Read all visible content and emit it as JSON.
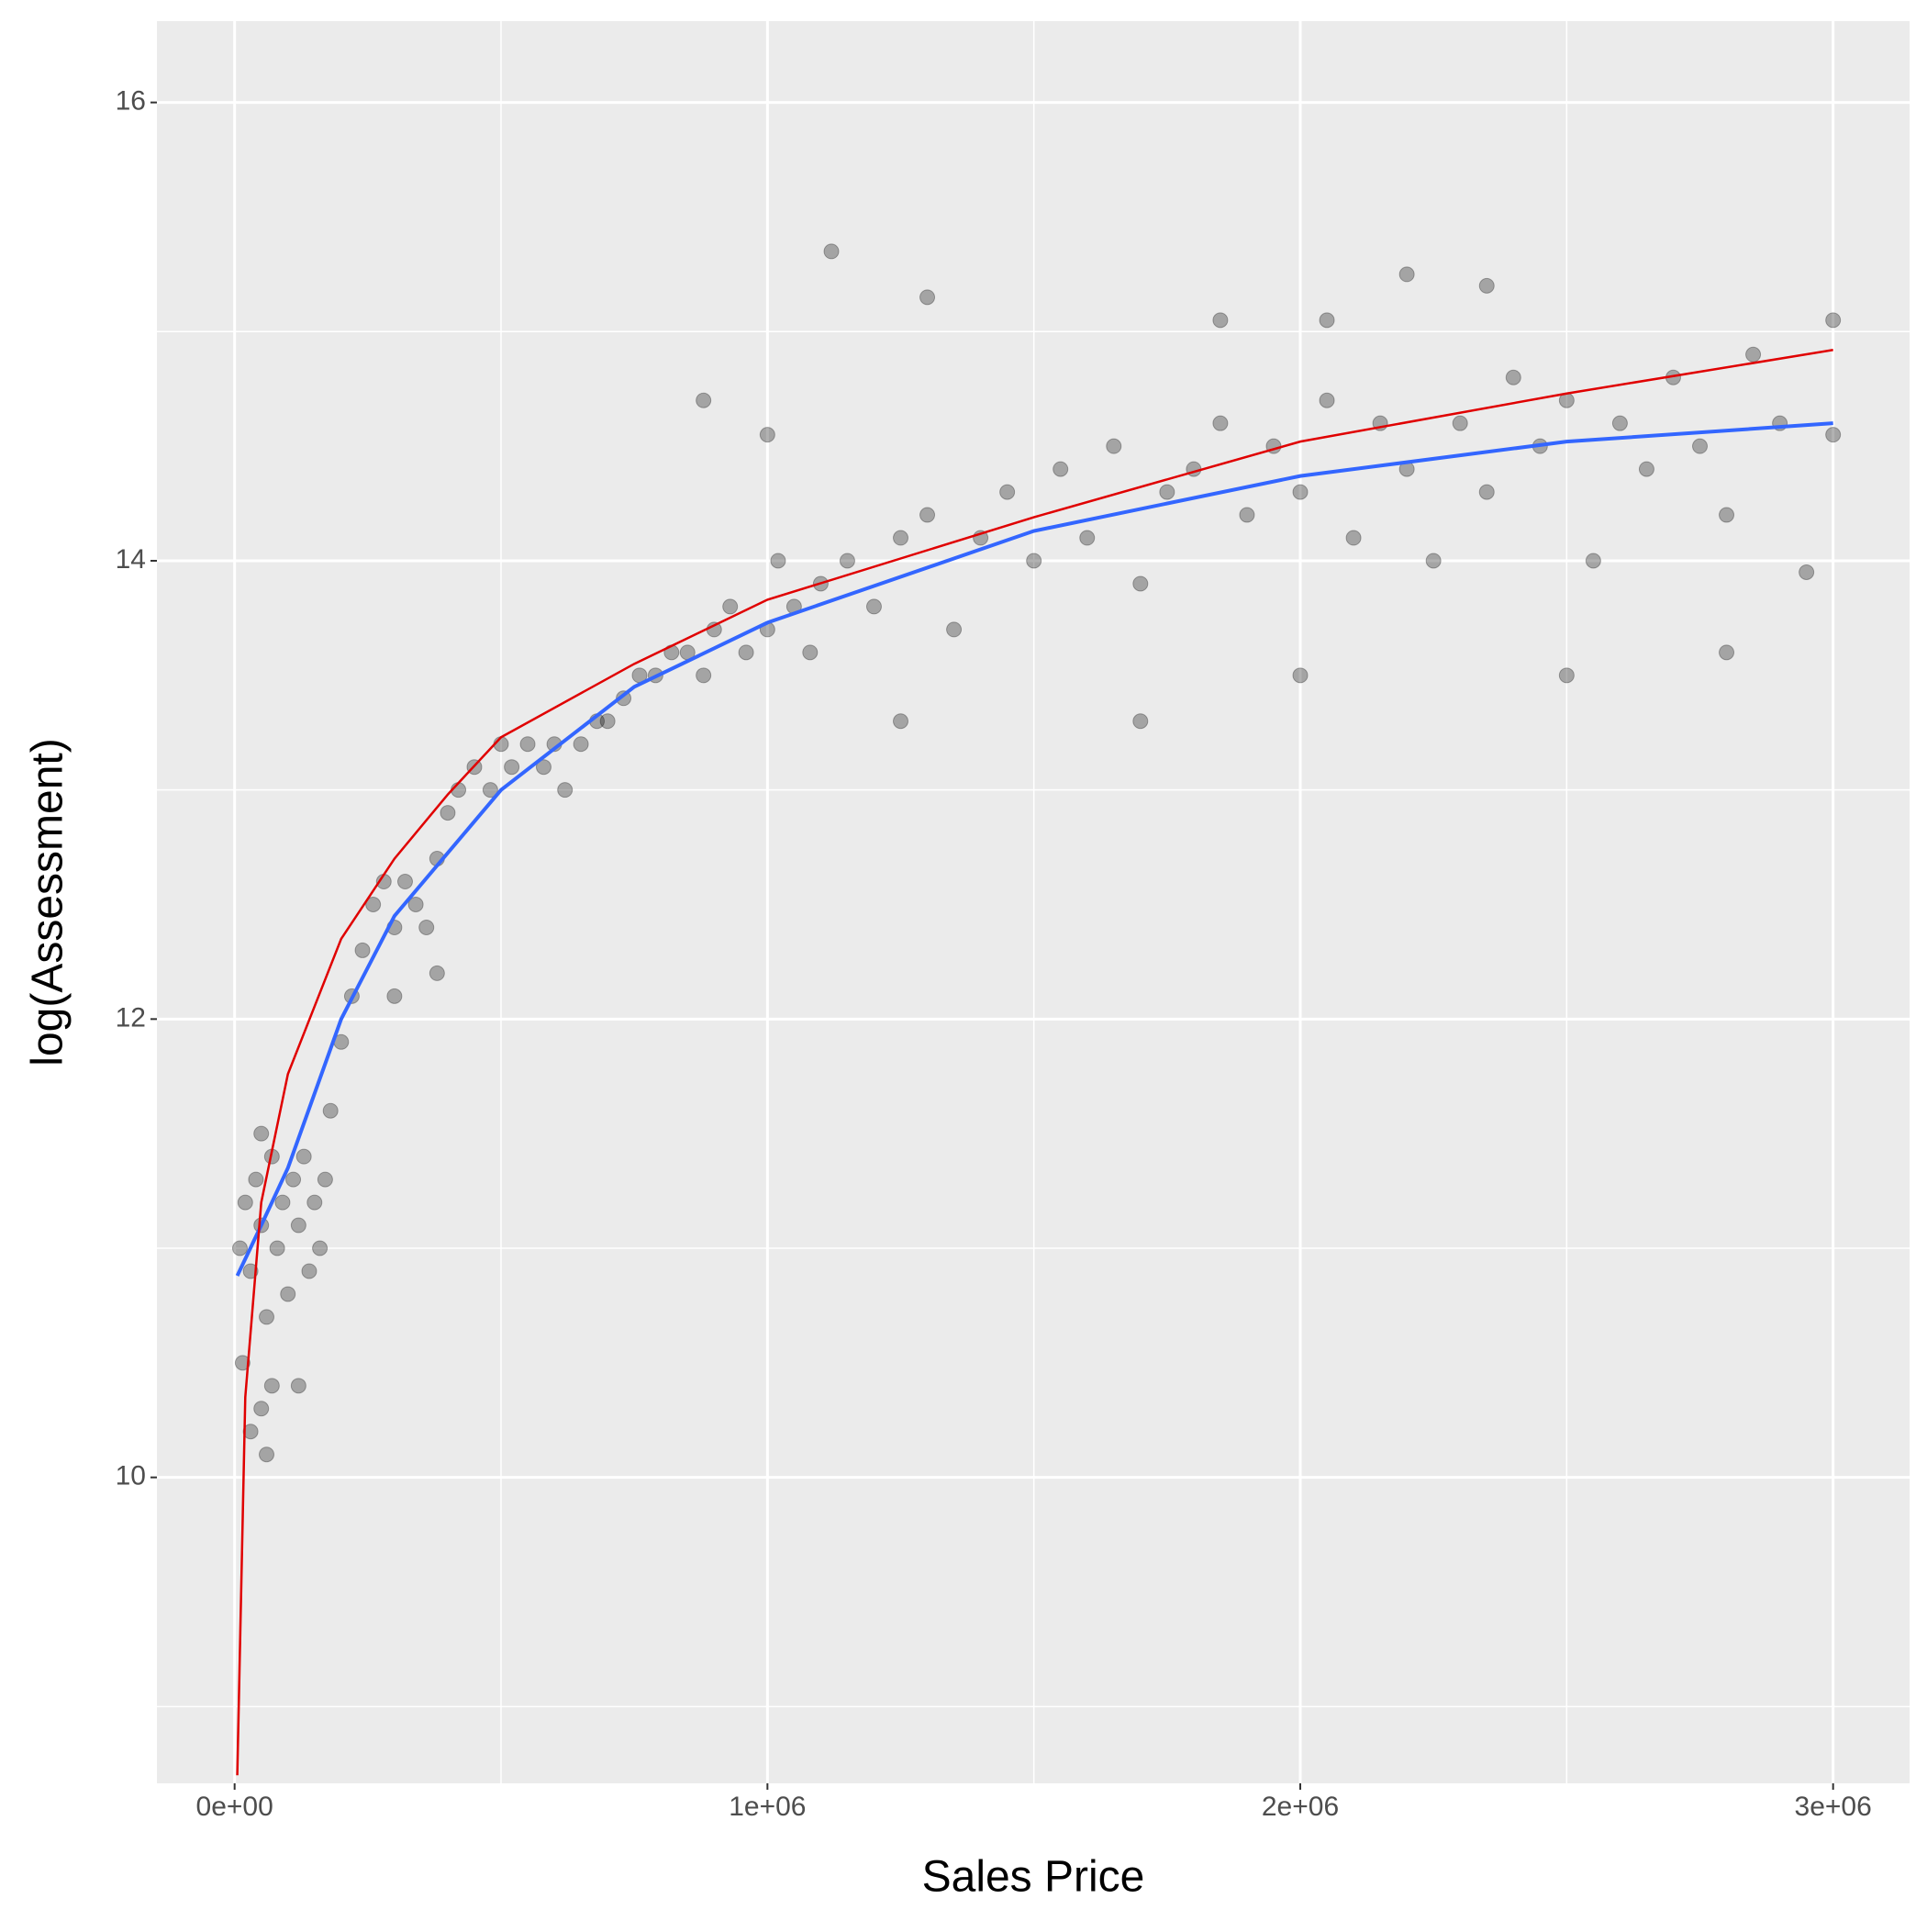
{
  "chart_data": {
    "type": "scatter",
    "xlabel": "Sales Price",
    "ylabel": "log(Assessment)",
    "xlim": [
      -145833,
      3143500
    ],
    "ylim": [
      8.665,
      16.355
    ],
    "xticks": [
      {
        "value": 0,
        "label": "0e+00"
      },
      {
        "value": 1000000,
        "label": "1e+06"
      },
      {
        "value": 2000000,
        "label": "2e+06"
      },
      {
        "value": 3000000,
        "label": "3e+06"
      }
    ],
    "yticks": [
      10,
      12,
      14,
      16
    ],
    "x_minor_grid": [
      500000,
      1500000,
      2500000
    ],
    "y_minor_grid": [
      9,
      11,
      13,
      15
    ],
    "grid": true,
    "panel_color": "#ebebeb",
    "point_color": "#000000",
    "point_alpha": 0.3,
    "points": {
      "x": [
        10000,
        20000,
        30000,
        40000,
        50000,
        60000,
        70000,
        80000,
        90000,
        100000,
        110000,
        120000,
        130000,
        140000,
        150000,
        160000,
        170000,
        15000,
        30000,
        70000,
        50000,
        180000,
        200000,
        220000,
        240000,
        260000,
        280000,
        300000,
        320000,
        340000,
        360000,
        380000,
        400000,
        420000,
        450000,
        480000,
        500000,
        520000,
        550000,
        580000,
        600000,
        620000,
        650000,
        680000,
        700000,
        730000,
        760000,
        790000,
        820000,
        850000,
        880000,
        900000,
        930000,
        960000,
        1000000,
        1020000,
        1050000,
        1080000,
        1100000,
        1150000,
        1200000,
        1250000,
        1300000,
        1350000,
        1400000,
        1450000,
        1500000,
        1550000,
        1600000,
        1650000,
        1700000,
        1750000,
        1800000,
        1850000,
        1900000,
        1950000,
        2000000,
        2050000,
        2100000,
        2150000,
        2200000,
        2250000,
        2300000,
        2350000,
        2400000,
        2450000,
        2500000,
        2550000,
        2600000,
        2650000,
        2700000,
        2750000,
        2800000,
        2850000,
        2900000,
        3000000,
        3000000,
        1120000,
        1300000,
        2200000,
        2350000,
        1850000,
        2050000,
        1000000,
        880000,
        1250000,
        1700000,
        2000000,
        2500000,
        2800000,
        2950000,
        50000,
        60000,
        120000,
        300000,
        380000
      ],
      "y": [
        11.0,
        11.2,
        10.9,
        11.3,
        11.1,
        10.7,
        11.4,
        11.0,
        11.2,
        10.8,
        11.3,
        11.1,
        11.4,
        10.9,
        11.2,
        11.0,
        11.3,
        10.5,
        10.2,
        10.4,
        11.5,
        11.6,
        11.9,
        12.1,
        12.3,
        12.5,
        12.6,
        12.4,
        12.6,
        12.5,
        12.4,
        12.7,
        12.9,
        13.0,
        13.1,
        13.0,
        13.2,
        13.1,
        13.2,
        13.1,
        13.2,
        13.0,
        13.2,
        13.3,
        13.3,
        13.4,
        13.5,
        13.5,
        13.6,
        13.6,
        13.5,
        13.7,
        13.8,
        13.6,
        13.7,
        14.0,
        13.8,
        13.6,
        13.9,
        14.0,
        13.8,
        14.1,
        14.2,
        13.7,
        14.1,
        14.3,
        14.0,
        14.4,
        14.1,
        14.5,
        13.9,
        14.3,
        14.4,
        14.6,
        14.2,
        14.5,
        14.3,
        14.7,
        14.1,
        14.6,
        14.4,
        14.0,
        14.6,
        14.3,
        14.8,
        14.5,
        14.7,
        14.0,
        14.6,
        14.4,
        14.8,
        14.5,
        14.2,
        14.9,
        14.6,
        15.05,
        14.55,
        15.35,
        15.15,
        15.25,
        15.2,
        15.05,
        15.05,
        14.55,
        14.7,
        13.3,
        13.3,
        13.5,
        13.5,
        13.6,
        13.95,
        10.3,
        10.1,
        10.4,
        12.1,
        12.2
      ]
    },
    "lines": [
      {
        "color": "#3366ff",
        "width": 4,
        "x": [
          5000,
          50000,
          100000,
          200000,
          300000,
          500000,
          750000,
          1000000,
          1500000,
          2000000,
          2500000,
          3000000
        ],
        "y": [
          10.88,
          11.1,
          11.35,
          12.0,
          12.45,
          13.0,
          13.45,
          13.73,
          14.13,
          14.37,
          14.52,
          14.6
        ]
      },
      {
        "color": "#e00000",
        "width": 2.5,
        "x": [
          5000,
          20000,
          50000,
          100000,
          200000,
          300000,
          400000,
          500000,
          750000,
          1000000,
          1500000,
          2000000,
          2500000,
          3000000
        ],
        "y": [
          8.7,
          10.35,
          11.2,
          11.76,
          12.35,
          12.7,
          12.98,
          13.23,
          13.55,
          13.83,
          14.19,
          14.52,
          14.73,
          14.92
        ]
      }
    ]
  }
}
